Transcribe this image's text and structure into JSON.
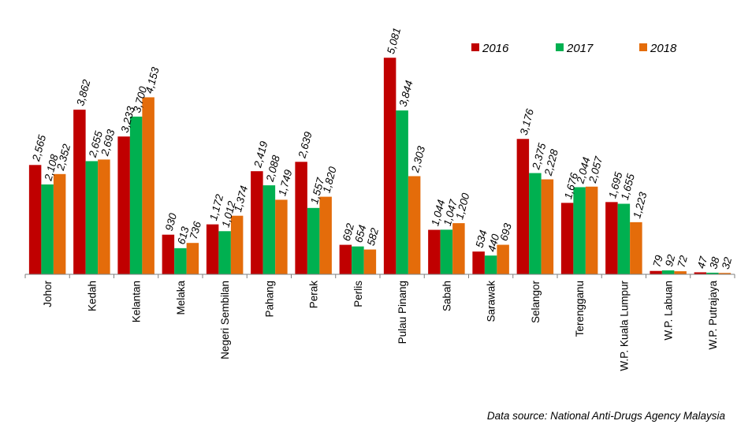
{
  "chart_data": {
    "type": "bar",
    "categories": [
      "Johor",
      "Kedah",
      "Kelantan",
      "Melaka",
      "Negeri Sembilan",
      "Pahang",
      "Perak",
      "Perlis",
      "Pulau Pinang",
      "Sabah",
      "Sarawak",
      "Selangor",
      "Terengganu",
      "W.P. Kuala Lumpur",
      "W.P. Labuan",
      "W.P. Putrajaya"
    ],
    "series": [
      {
        "name": "2016",
        "color": "#c00000",
        "values": [
          2565,
          3862,
          3233,
          930,
          1172,
          2419,
          2639,
          692,
          5081,
          1044,
          534,
          3176,
          1676,
          1695,
          79,
          47
        ],
        "labels": [
          "2,565",
          "3,862",
          "3,233",
          "930",
          "1,172",
          "2,419",
          "2,639",
          "692",
          "5,081",
          "1,044",
          "534",
          "3,176",
          "1,676",
          "1,695",
          "79",
          "47"
        ]
      },
      {
        "name": "2017",
        "color": "#00b050",
        "values": [
          2108,
          2655,
          3700,
          613,
          1012,
          2088,
          1557,
          654,
          3844,
          1047,
          440,
          2375,
          2044,
          1655,
          92,
          38
        ],
        "labels": [
          "2,108",
          "2,655",
          "3,700",
          "613",
          "1,012",
          "2,088",
          "1,557",
          "654",
          "3,844",
          "1,047",
          "440",
          "2,375",
          "2,044",
          "1,655",
          "92",
          "38"
        ]
      },
      {
        "name": "2018",
        "color": "#e46c0a",
        "values": [
          2352,
          2693,
          4153,
          736,
          1374,
          1749,
          1820,
          582,
          2303,
          1200,
          693,
          2228,
          2057,
          1223,
          72,
          32
        ],
        "labels": [
          "2,352",
          "2,693",
          "4,153",
          "736",
          "1,374",
          "1,749",
          "1,820",
          "582",
          "2,303",
          "1,200",
          "693",
          "2,228",
          "2,057",
          "1,223",
          "72",
          "32"
        ]
      }
    ],
    "ylim": [
      0,
      5400
    ],
    "grid": false,
    "legend_position": "top-right",
    "source_note": "Data source: National Anti-Drugs Agency Malaysia"
  }
}
